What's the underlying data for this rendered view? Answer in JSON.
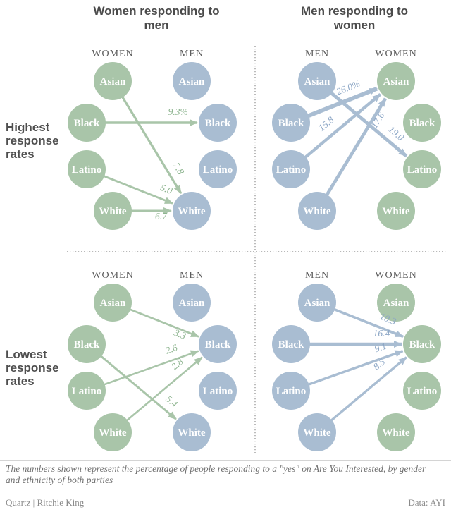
{
  "titles": {
    "left": "Women responding to men",
    "right": "Men responding to women"
  },
  "row_labels": {
    "top": "Highest response rates",
    "bottom": "Lowest response rates"
  },
  "footnote": "The numbers shown represent the percentage of people responding to a \"yes\" on Are You Interested, by gender and ethnicity of both parties",
  "credits": {
    "left": "Quartz | Ritchie King",
    "right": "Data: AYI"
  },
  "colors": {
    "green": "#a9c5a9",
    "blue": "#a9bdd2",
    "green_label": "#8eb590",
    "blue_label": "#8da7c6",
    "circle_text": "#ffffff",
    "header_text": "#5d5d5d",
    "divider": "#8f8f8f"
  },
  "chart_data": {
    "type": "flow-diagram",
    "ethnicities": [
      "Asian",
      "Black",
      "Latino",
      "White"
    ],
    "quadrants": [
      {
        "name": "women-to-men-highest",
        "row": "top",
        "col": "left",
        "left_column": {
          "header": "WOMEN",
          "color": "green"
        },
        "right_column": {
          "header": "MEN",
          "color": "blue"
        },
        "arrow_color": "green",
        "arrows": [
          {
            "from": "Asian",
            "to": "White",
            "label": "7.8",
            "value": 7.8,
            "t": 0.8,
            "side": 1
          },
          {
            "from": "Black",
            "to": "Black",
            "label": "9.3%",
            "value": 9.3,
            "t": 0.79,
            "side": 1
          },
          {
            "from": "Latino",
            "to": "White",
            "label": "5.0",
            "value": 5.0,
            "t": 0.85,
            "side": 1
          },
          {
            "from": "White",
            "to": "White",
            "label": "6.7",
            "value": 6.7,
            "t": 0.74,
            "side": -1,
            "offset": 12
          }
        ]
      },
      {
        "name": "men-to-women-highest",
        "row": "top",
        "col": "right",
        "left_column": {
          "header": "MEN",
          "color": "blue"
        },
        "right_column": {
          "header": "WOMEN",
          "color": "green"
        },
        "arrow_color": "blue",
        "arrows": [
          {
            "from": "Asian",
            "to": "Latino",
            "label": "19.0",
            "value": 19.0,
            "t": 0.77,
            "side": 1
          },
          {
            "from": "Black",
            "to": "Asian",
            "label": "26.0%",
            "value": 26.0,
            "t": 0.64,
            "side": 1,
            "offset": 12
          },
          {
            "from": "Latino",
            "to": "Asian",
            "label": "15.8",
            "value": 15.8,
            "t": 0.38,
            "side": 1,
            "offset": 13
          },
          {
            "from": "White",
            "to": "Asian",
            "label": "17.6",
            "value": 17.6,
            "t": 0.8,
            "side": -1
          }
        ]
      },
      {
        "name": "women-to-men-lowest",
        "row": "bottom",
        "col": "left",
        "left_column": {
          "header": "WOMEN",
          "color": "green"
        },
        "right_column": {
          "header": "MEN",
          "color": "blue"
        },
        "arrow_color": "green",
        "arrows": [
          {
            "from": "Asian",
            "to": "Black",
            "label": "3.3",
            "value": 3.3,
            "t": 0.75,
            "side": -1
          },
          {
            "from": "Black",
            "to": "White",
            "label": "5.4",
            "value": 5.4,
            "t": 0.85,
            "side": 1
          },
          {
            "from": "Latino",
            "to": "Black",
            "label": "2.6",
            "value": 2.6,
            "t": 0.75,
            "side": 1
          },
          {
            "from": "White",
            "to": "Black",
            "label": "2.8",
            "value": 2.8,
            "t": 0.76,
            "side": 1
          }
        ]
      },
      {
        "name": "men-to-women-lowest",
        "row": "bottom",
        "col": "right",
        "left_column": {
          "header": "MEN",
          "color": "blue"
        },
        "right_column": {
          "header": "WOMEN",
          "color": "green"
        },
        "arrow_color": "blue",
        "arrows": [
          {
            "from": "Asian",
            "to": "Black",
            "label": "10.3",
            "value": 10.3,
            "t": 0.72,
            "side": 1
          },
          {
            "from": "Black",
            "to": "Black",
            "label": "16.4",
            "value": 16.4,
            "t": 0.78,
            "side": 1
          },
          {
            "from": "Latino",
            "to": "Black",
            "label": "9.1",
            "value": 9.1,
            "t": 0.8,
            "side": 1
          },
          {
            "from": "White",
            "to": "Black",
            "label": "8.5",
            "value": 8.5,
            "t": 0.74,
            "side": 1,
            "offset": 13
          }
        ]
      }
    ]
  }
}
